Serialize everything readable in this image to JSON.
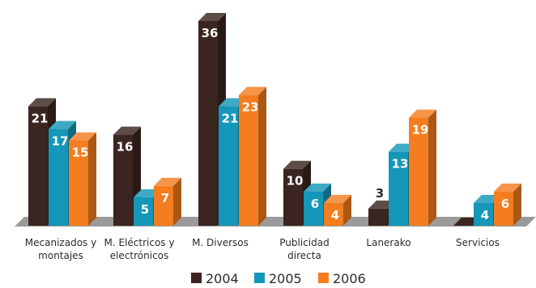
{
  "chart_data": {
    "type": "bar",
    "style": "3d-grouped",
    "categories": [
      [
        "Mecanizados y",
        "montajes"
      ],
      [
        "M. Eléctricos y",
        "electrónicos"
      ],
      [
        "M. Diversos"
      ],
      [
        "Publicidad",
        "directa"
      ],
      [
        "Lanerako"
      ],
      [
        "Servicios"
      ]
    ],
    "series": [
      {
        "name": "2004",
        "color": "#3b2520",
        "values": [
          21,
          16,
          36,
          10,
          3,
          0
        ]
      },
      {
        "name": "2005",
        "color": "#1497b8",
        "values": [
          17,
          5,
          21,
          6,
          13,
          4
        ]
      },
      {
        "name": "2006",
        "color": "#f47d20",
        "values": [
          15,
          7,
          23,
          4,
          19,
          6
        ]
      }
    ],
    "ylim": [
      0,
      36
    ],
    "legend_position": "bottom",
    "grid": false
  }
}
